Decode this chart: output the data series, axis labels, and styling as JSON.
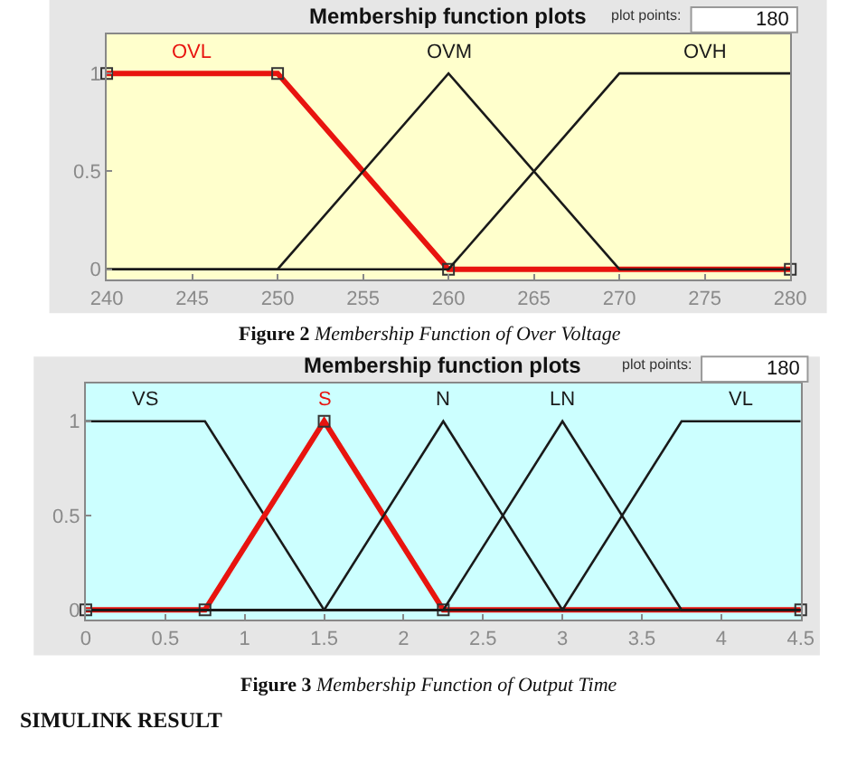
{
  "chart_data": [
    {
      "type": "line",
      "title": "Membership function plots",
      "xlim": [
        240,
        280
      ],
      "xticks": [
        240,
        245,
        250,
        255,
        260,
        265,
        270,
        275,
        280
      ],
      "ylim": [
        -0.05,
        1.2
      ],
      "yticks": [
        0,
        0.5,
        1
      ],
      "series": [
        {
          "name": "OVL",
          "color": "#e8140f",
          "x": [
            240,
            250,
            260,
            280
          ],
          "values": [
            1,
            1,
            0,
            0
          ],
          "marker": "square"
        },
        {
          "name": "OVM",
          "color": "#1a1a1a",
          "x": [
            240,
            250,
            260,
            270,
            280
          ],
          "values": [
            0,
            0,
            1,
            0,
            0
          ]
        },
        {
          "name": "OVH",
          "color": "#1a1a1a",
          "x": [
            240,
            260,
            270,
            280
          ],
          "values": [
            0,
            0,
            1,
            1
          ]
        }
      ],
      "annotations": [
        "plot points:",
        "180",
        "Figure 2 Membership Function of Over Voltage"
      ]
    },
    {
      "type": "line",
      "title": "Membership function plots",
      "xlim": [
        0,
        4.5
      ],
      "xticks": [
        0,
        0.5,
        1,
        1.5,
        2,
        2.5,
        3,
        3.5,
        4,
        4.5
      ],
      "ylim": [
        -0.05,
        1.2
      ],
      "yticks": [
        0,
        0.5,
        1
      ],
      "series": [
        {
          "name": "VS",
          "color": "#1a1a1a",
          "x": [
            0,
            0.75,
            1.5,
            4.5
          ],
          "values": [
            1,
            1,
            0,
            0
          ]
        },
        {
          "name": "S",
          "color": "#e8140f",
          "x": [
            0,
            0.75,
            1.5,
            2.25,
            4.5
          ],
          "values": [
            0,
            0,
            1,
            0,
            0
          ],
          "marker": "square"
        },
        {
          "name": "N",
          "color": "#1a1a1a",
          "x": [
            0,
            1.5,
            2.25,
            3,
            4.5
          ],
          "values": [
            0,
            0,
            1,
            0,
            0
          ]
        },
        {
          "name": "LN",
          "color": "#1a1a1a",
          "x": [
            0,
            2.25,
            3,
            3.75,
            4.5
          ],
          "values": [
            0,
            0,
            1,
            0,
            0
          ]
        },
        {
          "name": "VL",
          "color": "#1a1a1a",
          "x": [
            0,
            3,
            3.75,
            4.5
          ],
          "values": [
            0,
            0,
            1,
            1
          ]
        }
      ],
      "annotations": [
        "plot points:",
        "180",
        "Figure 3 Membership Function of Output Time",
        "SIMULINK RESULT"
      ]
    }
  ]
}
